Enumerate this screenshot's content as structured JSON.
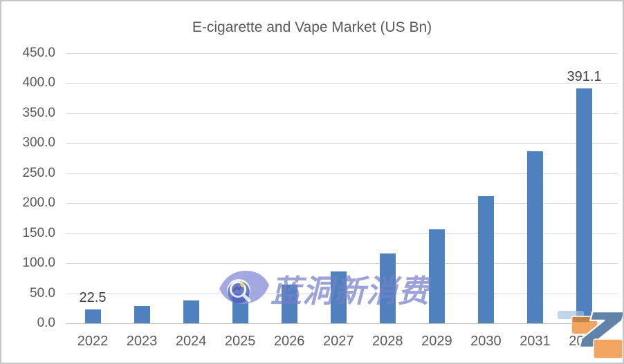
{
  "chart_data": {
    "type": "bar",
    "title": "E-cigarette and Vape Market (US Bn)",
    "categories": [
      "2022",
      "2023",
      "2024",
      "2025",
      "2026",
      "2027",
      "2028",
      "2029",
      "2030",
      "2031",
      "2032"
    ],
    "values": [
      22.5,
      29.0,
      37.5,
      48.1,
      64.5,
      86.5,
      116.0,
      156.5,
      211.5,
      286.5,
      391.1
    ],
    "bar_labels": [
      "22.5",
      "",
      "",
      "",
      "",
      "",
      "",
      "",
      "",
      "",
      "391.1"
    ],
    "ylim": [
      0,
      450
    ],
    "ytick_values": [
      450,
      400,
      350,
      300,
      250,
      200,
      150,
      100,
      50,
      0
    ],
    "ytick_labels": [
      "450.0",
      "400.0",
      "350.0",
      "300.0",
      "250.0",
      "200.0",
      "150.0",
      "100.0",
      "50.0",
      "0.0"
    ],
    "grid": true,
    "legend": "none",
    "bar_color": "#4e81bd",
    "gridline_color": "#d9d9d9",
    "axis_text_color": "#595959",
    "data_label_color": "#404040"
  },
  "watermark": {
    "icon": "eye-chart-logo",
    "text": "蓝洞新消费",
    "color": "#7680c8"
  },
  "corner_logo": {
    "icon": "z-ribbon-logo",
    "orange": "#f2a45c",
    "blue": "#5c80a8"
  }
}
